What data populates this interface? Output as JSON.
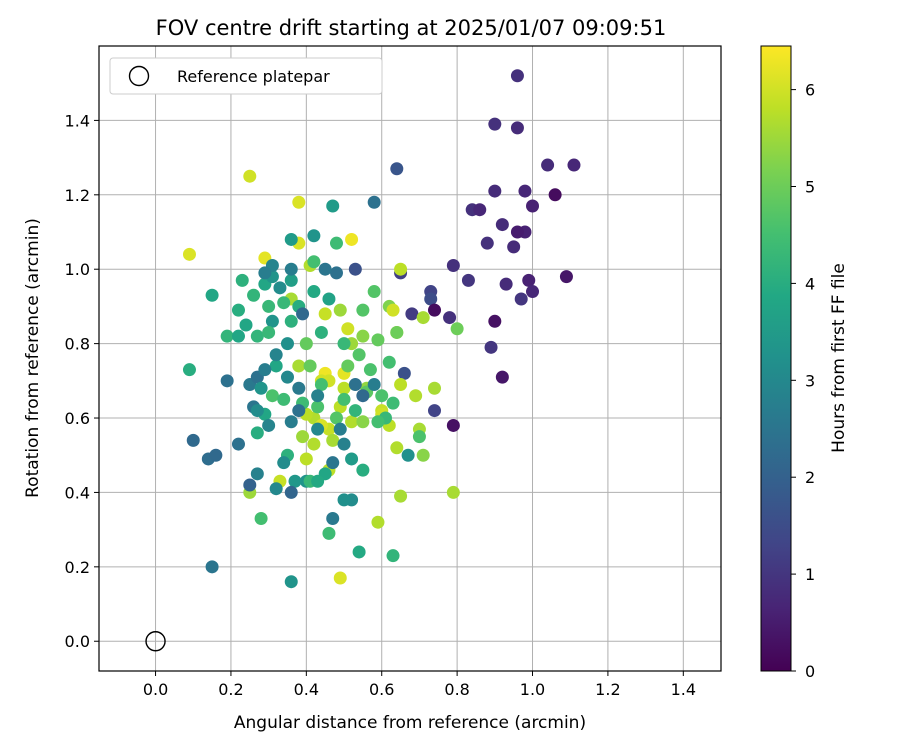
{
  "chart_data": {
    "type": "scatter",
    "title": "FOV centre drift starting at 2025/01/07 09:09:51",
    "xlabel": "Angular distance from reference (arcmin)",
    "ylabel": "Rotation from reference (arcmin)",
    "xlim": [
      -0.15,
      1.5
    ],
    "ylim": [
      -0.08,
      1.6
    ],
    "xticks": [
      "0.0",
      "0.2",
      "0.4",
      "0.6",
      "0.8",
      "1.0",
      "1.2",
      "1.4"
    ],
    "yticks": [
      "0.0",
      "0.2",
      "0.4",
      "0.6",
      "0.8",
      "1.0",
      "1.2",
      "1.4"
    ],
    "grid": true,
    "legend": {
      "position": "top-left",
      "entries": [
        "Reference platepar"
      ]
    },
    "reference_point": {
      "x": 0.0,
      "y": 0.0
    },
    "colorbar": {
      "label": "Hours from first FF file",
      "range": [
        0,
        6.45
      ],
      "ticks": [
        "0",
        "1",
        "2",
        "3",
        "4",
        "5",
        "6"
      ],
      "colormap": "viridis"
    },
    "points": [
      [
        0.96,
        1.52,
        0.9
      ],
      [
        0.9,
        1.39,
        0.9
      ],
      [
        0.96,
        1.38,
        0.8
      ],
      [
        1.04,
        1.28,
        0.8
      ],
      [
        1.11,
        1.28,
        0.7
      ],
      [
        0.9,
        1.21,
        0.8
      ],
      [
        0.98,
        1.21,
        0.7
      ],
      [
        1.06,
        1.2,
        0.2
      ],
      [
        0.84,
        1.16,
        0.9
      ],
      [
        0.86,
        1.16,
        0.7
      ],
      [
        1.0,
        1.17,
        0.6
      ],
      [
        0.92,
        1.12,
        0.8
      ],
      [
        0.98,
        1.1,
        0.6
      ],
      [
        0.88,
        1.07,
        0.9
      ],
      [
        0.95,
        1.06,
        0.8
      ],
      [
        0.79,
        1.01,
        0.9
      ],
      [
        0.83,
        0.97,
        1.0
      ],
      [
        0.93,
        0.96,
        0.8
      ],
      [
        0.99,
        0.97,
        0.6
      ],
      [
        1.09,
        0.98,
        0.4
      ],
      [
        1.0,
        0.94,
        0.7
      ],
      [
        0.97,
        0.92,
        1.0
      ],
      [
        0.73,
        0.94,
        1.3
      ],
      [
        0.73,
        0.92,
        1.5
      ],
      [
        0.74,
        0.89,
        0.2
      ],
      [
        0.68,
        0.88,
        1.1
      ],
      [
        0.78,
        0.87,
        0.9
      ],
      [
        0.9,
        0.86,
        0.3
      ],
      [
        0.89,
        0.79,
        1.0
      ],
      [
        0.92,
        0.71,
        0.4
      ],
      [
        0.79,
        0.58,
        0.3
      ],
      [
        0.74,
        0.62,
        1.3
      ],
      [
        0.64,
        1.27,
        1.7
      ],
      [
        0.58,
        1.18,
        2.4
      ],
      [
        0.65,
        0.99,
        1.2
      ],
      [
        0.53,
        1.0,
        1.6
      ],
      [
        0.66,
        0.72,
        1.6
      ],
      [
        0.96,
        1.1,
        0.5
      ],
      [
        0.09,
        1.04,
        6.1
      ],
      [
        0.25,
        1.25,
        6.0
      ],
      [
        0.38,
        1.18,
        6.1
      ],
      [
        0.29,
        1.03,
        6.2
      ],
      [
        0.52,
        1.08,
        6.3
      ],
      [
        0.38,
        1.07,
        6.1
      ],
      [
        0.65,
        1.0,
        5.8
      ],
      [
        0.41,
        1.01,
        5.7
      ],
      [
        0.45,
        0.88,
        5.9
      ],
      [
        0.49,
        0.89,
        5.5
      ],
      [
        0.62,
        0.9,
        5.2
      ],
      [
        0.63,
        0.89,
        6.0
      ],
      [
        0.64,
        0.83,
        5.8
      ],
      [
        0.71,
        0.87,
        5.6
      ],
      [
        0.36,
        0.92,
        5.6
      ],
      [
        0.51,
        0.84,
        6.0
      ],
      [
        0.55,
        0.82,
        5.3
      ],
      [
        0.45,
        0.72,
        6.3
      ],
      [
        0.46,
        0.7,
        6.0
      ],
      [
        0.5,
        0.68,
        5.8
      ],
      [
        0.38,
        0.74,
        5.6
      ],
      [
        0.52,
        0.8,
        5.5
      ],
      [
        0.65,
        0.69,
        5.8
      ],
      [
        0.74,
        0.68,
        5.6
      ],
      [
        0.69,
        0.66,
        5.7
      ],
      [
        0.56,
        0.68,
        5.4
      ],
      [
        0.42,
        0.6,
        5.7
      ],
      [
        0.4,
        0.61,
        5.8
      ],
      [
        0.46,
        0.57,
        5.9
      ],
      [
        0.49,
        0.63,
        5.8
      ],
      [
        0.52,
        0.59,
        5.7
      ],
      [
        0.6,
        0.62,
        5.9
      ],
      [
        0.62,
        0.58,
        5.8
      ],
      [
        0.7,
        0.57,
        5.6
      ],
      [
        0.71,
        0.5,
        5.3
      ],
      [
        0.64,
        0.52,
        5.7
      ],
      [
        0.47,
        0.54,
        5.6
      ],
      [
        0.42,
        0.53,
        5.7
      ],
      [
        0.4,
        0.49,
        5.8
      ],
      [
        0.46,
        0.46,
        5.8
      ],
      [
        0.33,
        0.43,
        5.9
      ],
      [
        0.25,
        0.4,
        5.5
      ],
      [
        0.65,
        0.39,
        5.6
      ],
      [
        0.79,
        0.4,
        5.6
      ],
      [
        0.59,
        0.32,
        5.7
      ],
      [
        0.49,
        0.17,
        6.1
      ],
      [
        0.44,
        0.58,
        6.1
      ],
      [
        0.39,
        0.55,
        5.5
      ],
      [
        0.5,
        0.72,
        6.2
      ],
      [
        0.6,
        0.61,
        6.0
      ],
      [
        0.44,
        0.7,
        6.0
      ],
      [
        0.55,
        0.59,
        5.3
      ],
      [
        0.09,
        0.73,
        4.0
      ],
      [
        0.15,
        0.93,
        3.8
      ],
      [
        0.23,
        0.97,
        4.1
      ],
      [
        0.22,
        0.89,
        4.0
      ],
      [
        0.24,
        0.85,
        3.8
      ],
      [
        0.26,
        0.93,
        4.2
      ],
      [
        0.29,
        0.96,
        3.8
      ],
      [
        0.36,
        1.08,
        3.5
      ],
      [
        0.42,
        1.09,
        3.3
      ],
      [
        0.47,
        1.17,
        3.5
      ],
      [
        0.48,
        1.07,
        4.4
      ],
      [
        0.42,
        1.02,
        4.5
      ],
      [
        0.36,
        0.97,
        3.6
      ],
      [
        0.42,
        0.94,
        3.9
      ],
      [
        0.46,
        0.92,
        3.7
      ],
      [
        0.34,
        0.91,
        4.3
      ],
      [
        0.38,
        0.9,
        4.0
      ],
      [
        0.3,
        0.9,
        4.3
      ],
      [
        0.27,
        0.82,
        4.2
      ],
      [
        0.19,
        0.82,
        4.2
      ],
      [
        0.35,
        0.8,
        3.2
      ],
      [
        0.44,
        0.83,
        4.1
      ],
      [
        0.5,
        0.8,
        4.3
      ],
      [
        0.54,
        0.77,
        4.7
      ],
      [
        0.58,
        0.94,
        4.7
      ],
      [
        0.64,
        0.83,
        5.0
      ],
      [
        0.8,
        0.84,
        5.0
      ],
      [
        0.59,
        0.81,
        4.9
      ],
      [
        0.55,
        0.89,
        4.7
      ],
      [
        0.4,
        0.8,
        4.9
      ],
      [
        0.41,
        0.74,
        4.9
      ],
      [
        0.44,
        0.69,
        4.5
      ],
      [
        0.51,
        0.74,
        4.9
      ],
      [
        0.56,
        0.67,
        4.8
      ],
      [
        0.6,
        0.66,
        4.6
      ],
      [
        0.62,
        0.75,
        4.5
      ],
      [
        0.61,
        0.6,
        4.3
      ],
      [
        0.63,
        0.64,
        4.4
      ],
      [
        0.7,
        0.55,
        4.6
      ],
      [
        0.67,
        0.5,
        3.2
      ],
      [
        0.55,
        0.46,
        4.0
      ],
      [
        0.52,
        0.49,
        3.5
      ],
      [
        0.45,
        0.45,
        3.8
      ],
      [
        0.4,
        0.43,
        3.3
      ],
      [
        0.37,
        0.43,
        3.4
      ],
      [
        0.35,
        0.5,
        4.1
      ],
      [
        0.28,
        0.33,
        4.5
      ],
      [
        0.46,
        0.29,
        4.4
      ],
      [
        0.54,
        0.24,
        3.9
      ],
      [
        0.63,
        0.23,
        4.2
      ],
      [
        0.36,
        0.16,
        3.3
      ],
      [
        0.27,
        0.56,
        4.0
      ],
      [
        0.31,
        0.66,
        4.6
      ],
      [
        0.34,
        0.65,
        4.4
      ],
      [
        0.39,
        0.64,
        4.4
      ],
      [
        0.43,
        0.63,
        4.6
      ],
      [
        0.48,
        0.6,
        4.7
      ],
      [
        0.5,
        0.65,
        4.5
      ],
      [
        0.53,
        0.62,
        4.2
      ],
      [
        0.57,
        0.73,
        4.6
      ],
      [
        0.32,
        0.74,
        3.8
      ],
      [
        0.36,
        0.86,
        4.1
      ],
      [
        0.31,
        0.86,
        3.3
      ],
      [
        0.3,
        0.83,
        4.3
      ],
      [
        0.22,
        0.82,
        3.8
      ],
      [
        0.33,
        0.95,
        3.1
      ],
      [
        0.29,
        0.61,
        3.8
      ],
      [
        0.41,
        0.43,
        4.3
      ],
      [
        0.43,
        0.43,
        3.9
      ],
      [
        0.59,
        0.59,
        4.5
      ],
      [
        0.31,
        0.98,
        3.3
      ],
      [
        0.1,
        0.54,
        2.2
      ],
      [
        0.14,
        0.49,
        2.3
      ],
      [
        0.16,
        0.5,
        2.2
      ],
      [
        0.15,
        0.2,
        2.5
      ],
      [
        0.19,
        0.7,
        2.4
      ],
      [
        0.22,
        0.53,
        2.4
      ],
      [
        0.25,
        0.42,
        2.0
      ],
      [
        0.27,
        0.45,
        2.8
      ],
      [
        0.26,
        0.63,
        2.5
      ],
      [
        0.25,
        0.69,
        2.6
      ],
      [
        0.27,
        0.71,
        2.4
      ],
      [
        0.29,
        0.73,
        2.7
      ],
      [
        0.3,
        0.58,
        2.9
      ],
      [
        0.32,
        0.41,
        3.0
      ],
      [
        0.34,
        0.48,
        3.1
      ],
      [
        0.36,
        0.4,
        2.1
      ],
      [
        0.36,
        0.59,
        2.7
      ],
      [
        0.38,
        0.68,
        2.6
      ],
      [
        0.38,
        0.62,
        2.4
      ],
      [
        0.43,
        0.66,
        2.8
      ],
      [
        0.47,
        0.48,
        2.5
      ],
      [
        0.5,
        0.53,
        2.8
      ],
      [
        0.53,
        0.69,
        2.4
      ],
      [
        0.55,
        0.66,
        2.2
      ],
      [
        0.58,
        0.69,
        2.7
      ],
      [
        0.48,
        0.99,
        2.4
      ],
      [
        0.45,
        1.0,
        2.5
      ],
      [
        0.36,
        1.0,
        2.7
      ],
      [
        0.31,
        1.01,
        2.9
      ],
      [
        0.29,
        0.99,
        2.7
      ],
      [
        0.39,
        0.88,
        2.2
      ],
      [
        0.52,
        0.38,
        3.1
      ],
      [
        0.5,
        0.38,
        3.2
      ],
      [
        0.47,
        0.33,
        2.6
      ],
      [
        0.35,
        0.71,
        3.0
      ],
      [
        0.28,
        0.68,
        3.3
      ],
      [
        0.27,
        0.62,
        3.1
      ],
      [
        0.32,
        0.77,
        2.9
      ],
      [
        0.49,
        0.57,
        2.7
      ],
      [
        0.43,
        0.57,
        3.0
      ]
    ]
  }
}
